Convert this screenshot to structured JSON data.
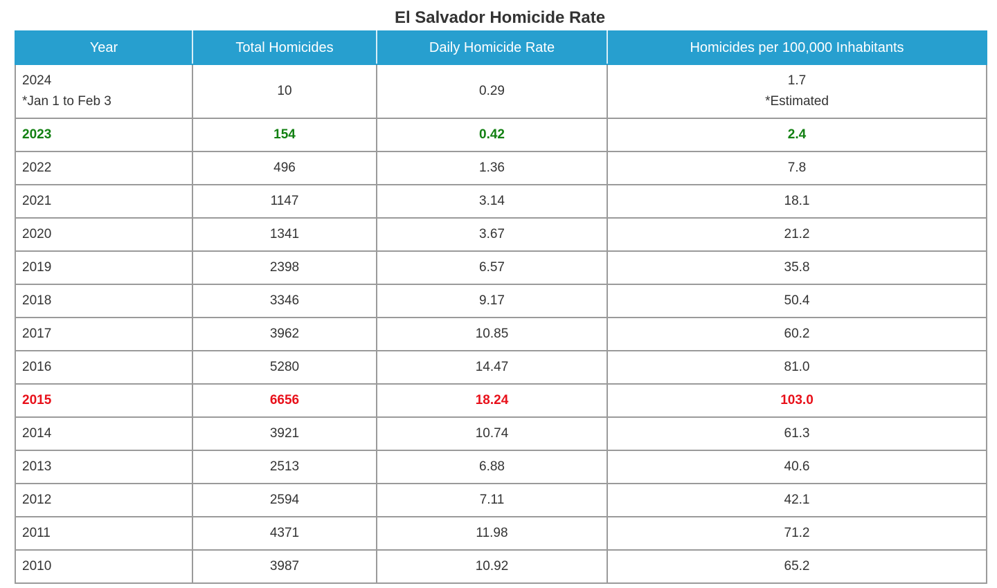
{
  "chart_data": {
    "type": "table",
    "title": "El Salvador Homicide Rate",
    "columns": [
      "Year",
      "Total Homicides",
      "Daily Homicide Rate",
      "Homicides per 100,000 Inhabitants"
    ],
    "highlight_colors": {
      "green": "#128012",
      "red": "#e8101a",
      "header": "#279fcf"
    },
    "rows": [
      {
        "year": "2024",
        "year_note": "*Jan 1 to Feb 3",
        "total": "10",
        "daily": "0.29",
        "per100k": "1.7",
        "per100k_note": "*Estimated",
        "highlight": ""
      },
      {
        "year": "2023",
        "total": "154",
        "daily": "0.42",
        "per100k": "2.4",
        "highlight": "green"
      },
      {
        "year": "2022",
        "total": "496",
        "daily": "1.36",
        "per100k": "7.8",
        "highlight": ""
      },
      {
        "year": "2021",
        "total": "1147",
        "daily": "3.14",
        "per100k": "18.1",
        "highlight": ""
      },
      {
        "year": "2020",
        "total": "1341",
        "daily": "3.67",
        "per100k": "21.2",
        "highlight": ""
      },
      {
        "year": "2019",
        "total": "2398",
        "daily": "6.57",
        "per100k": "35.8",
        "highlight": ""
      },
      {
        "year": "2018",
        "total": "3346",
        "daily": "9.17",
        "per100k": "50.4",
        "highlight": ""
      },
      {
        "year": "2017",
        "total": "3962",
        "daily": "10.85",
        "per100k": "60.2",
        "highlight": ""
      },
      {
        "year": "2016",
        "total": "5280",
        "daily": "14.47",
        "per100k": "81.0",
        "highlight": ""
      },
      {
        "year": "2015",
        "total": "6656",
        "daily": "18.24",
        "per100k": "103.0",
        "highlight": "red"
      },
      {
        "year": "2014",
        "total": "3921",
        "daily": "10.74",
        "per100k": "61.3",
        "highlight": ""
      },
      {
        "year": "2013",
        "total": "2513",
        "daily": "6.88",
        "per100k": "40.6",
        "highlight": ""
      },
      {
        "year": "2012",
        "total": "2594",
        "daily": "7.11",
        "per100k": "42.1",
        "highlight": ""
      },
      {
        "year": "2011",
        "total": "4371",
        "daily": "11.98",
        "per100k": "71.2",
        "highlight": ""
      },
      {
        "year": "2010",
        "total": "3987",
        "daily": "10.92",
        "per100k": "65.2",
        "highlight": ""
      }
    ]
  }
}
